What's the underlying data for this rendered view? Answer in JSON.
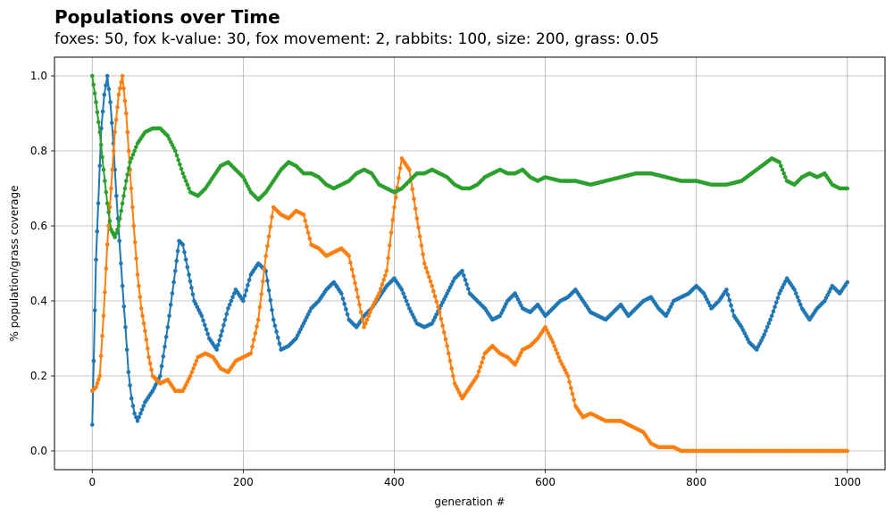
{
  "chart_data": {
    "type": "line",
    "title": "Populations over Time",
    "subtitle": "foxes: 50, fox k-value: 30, fox movement: 2, rabbits: 100, size: 200, grass: 0.05",
    "xlabel": "generation #",
    "ylabel": "% population/grass coverage",
    "xlim": [
      -50,
      1050
    ],
    "ylim": [
      -0.05,
      1.05
    ],
    "xticks": [
      0,
      200,
      400,
      600,
      800,
      1000
    ],
    "yticks": [
      0.0,
      0.2,
      0.4,
      0.6,
      0.8,
      1.0
    ],
    "xtick_labels": [
      "0",
      "200",
      "400",
      "600",
      "800",
      "1000"
    ],
    "ytick_labels": [
      "0.0",
      "0.2",
      "0.4",
      "0.6",
      "0.8",
      "1.0"
    ],
    "grid": true,
    "markers": true,
    "series": [
      {
        "color": "#1f77b4",
        "points": [
          [
            0,
            0.07
          ],
          [
            2,
            0.24
          ],
          [
            5,
            0.51
          ],
          [
            8,
            0.66
          ],
          [
            12,
            0.86
          ],
          [
            16,
            0.95
          ],
          [
            20,
            1.0
          ],
          [
            24,
            0.93
          ],
          [
            28,
            0.82
          ],
          [
            32,
            0.68
          ],
          [
            36,
            0.56
          ],
          [
            40,
            0.44
          ],
          [
            44,
            0.33
          ],
          [
            48,
            0.21
          ],
          [
            52,
            0.14
          ],
          [
            56,
            0.1
          ],
          [
            60,
            0.08
          ],
          [
            64,
            0.1
          ],
          [
            70,
            0.13
          ],
          [
            80,
            0.16
          ],
          [
            90,
            0.2
          ],
          [
            100,
            0.33
          ],
          [
            110,
            0.48
          ],
          [
            115,
            0.56
          ],
          [
            120,
            0.55
          ],
          [
            128,
            0.47
          ],
          [
            135,
            0.4
          ],
          [
            145,
            0.36
          ],
          [
            155,
            0.3
          ],
          [
            165,
            0.27
          ],
          [
            172,
            0.32
          ],
          [
            180,
            0.38
          ],
          [
            190,
            0.43
          ],
          [
            200,
            0.4
          ],
          [
            210,
            0.47
          ],
          [
            220,
            0.5
          ],
          [
            230,
            0.48
          ],
          [
            240,
            0.35
          ],
          [
            250,
            0.27
          ],
          [
            260,
            0.28
          ],
          [
            270,
            0.3
          ],
          [
            280,
            0.34
          ],
          [
            290,
            0.38
          ],
          [
            300,
            0.4
          ],
          [
            310,
            0.43
          ],
          [
            320,
            0.45
          ],
          [
            330,
            0.42
          ],
          [
            340,
            0.35
          ],
          [
            350,
            0.33
          ],
          [
            360,
            0.36
          ],
          [
            370,
            0.38
          ],
          [
            380,
            0.41
          ],
          [
            390,
            0.44
          ],
          [
            400,
            0.46
          ],
          [
            410,
            0.43
          ],
          [
            420,
            0.38
          ],
          [
            430,
            0.34
          ],
          [
            440,
            0.33
          ],
          [
            450,
            0.34
          ],
          [
            460,
            0.38
          ],
          [
            470,
            0.42
          ],
          [
            480,
            0.46
          ],
          [
            490,
            0.48
          ],
          [
            500,
            0.42
          ],
          [
            510,
            0.4
          ],
          [
            520,
            0.38
          ],
          [
            530,
            0.35
          ],
          [
            540,
            0.36
          ],
          [
            550,
            0.4
          ],
          [
            560,
            0.42
          ],
          [
            570,
            0.38
          ],
          [
            580,
            0.37
          ],
          [
            590,
            0.39
          ],
          [
            600,
            0.36
          ],
          [
            610,
            0.38
          ],
          [
            620,
            0.4
          ],
          [
            630,
            0.41
          ],
          [
            640,
            0.43
          ],
          [
            650,
            0.4
          ],
          [
            660,
            0.37
          ],
          [
            670,
            0.36
          ],
          [
            680,
            0.35
          ],
          [
            690,
            0.37
          ],
          [
            700,
            0.39
          ],
          [
            710,
            0.36
          ],
          [
            720,
            0.38
          ],
          [
            730,
            0.4
          ],
          [
            740,
            0.41
          ],
          [
            750,
            0.38
          ],
          [
            760,
            0.36
          ],
          [
            770,
            0.4
          ],
          [
            780,
            0.41
          ],
          [
            790,
            0.42
          ],
          [
            800,
            0.44
          ],
          [
            810,
            0.42
          ],
          [
            820,
            0.38
          ],
          [
            830,
            0.4
          ],
          [
            840,
            0.43
          ],
          [
            850,
            0.36
          ],
          [
            860,
            0.33
          ],
          [
            870,
            0.29
          ],
          [
            880,
            0.27
          ],
          [
            890,
            0.31
          ],
          [
            900,
            0.36
          ],
          [
            910,
            0.42
          ],
          [
            920,
            0.46
          ],
          [
            930,
            0.43
          ],
          [
            940,
            0.38
          ],
          [
            950,
            0.35
          ],
          [
            960,
            0.38
          ],
          [
            970,
            0.4
          ],
          [
            980,
            0.44
          ],
          [
            990,
            0.42
          ],
          [
            1000,
            0.45
          ]
        ]
      },
      {
        "color": "#ff7f0e",
        "points": [
          [
            0,
            0.16
          ],
          [
            5,
            0.17
          ],
          [
            10,
            0.2
          ],
          [
            15,
            0.36
          ],
          [
            20,
            0.55
          ],
          [
            25,
            0.7
          ],
          [
            30,
            0.85
          ],
          [
            35,
            0.95
          ],
          [
            40,
            1.0
          ],
          [
            45,
            0.9
          ],
          [
            50,
            0.75
          ],
          [
            55,
            0.6
          ],
          [
            60,
            0.47
          ],
          [
            65,
            0.38
          ],
          [
            70,
            0.32
          ],
          [
            75,
            0.25
          ],
          [
            80,
            0.2
          ],
          [
            85,
            0.19
          ],
          [
            90,
            0.18
          ],
          [
            100,
            0.19
          ],
          [
            110,
            0.16
          ],
          [
            120,
            0.16
          ],
          [
            130,
            0.2
          ],
          [
            140,
            0.25
          ],
          [
            150,
            0.26
          ],
          [
            160,
            0.25
          ],
          [
            170,
            0.22
          ],
          [
            180,
            0.21
          ],
          [
            190,
            0.24
          ],
          [
            200,
            0.25
          ],
          [
            210,
            0.26
          ],
          [
            220,
            0.35
          ],
          [
            230,
            0.52
          ],
          [
            240,
            0.65
          ],
          [
            250,
            0.63
          ],
          [
            260,
            0.62
          ],
          [
            270,
            0.64
          ],
          [
            280,
            0.63
          ],
          [
            290,
            0.55
          ],
          [
            300,
            0.54
          ],
          [
            310,
            0.52
          ],
          [
            320,
            0.53
          ],
          [
            330,
            0.54
          ],
          [
            340,
            0.52
          ],
          [
            350,
            0.43
          ],
          [
            360,
            0.33
          ],
          [
            370,
            0.38
          ],
          [
            380,
            0.42
          ],
          [
            390,
            0.48
          ],
          [
            400,
            0.65
          ],
          [
            410,
            0.78
          ],
          [
            420,
            0.75
          ],
          [
            430,
            0.62
          ],
          [
            440,
            0.5
          ],
          [
            450,
            0.44
          ],
          [
            460,
            0.37
          ],
          [
            470,
            0.28
          ],
          [
            480,
            0.18
          ],
          [
            490,
            0.14
          ],
          [
            500,
            0.17
          ],
          [
            510,
            0.2
          ],
          [
            520,
            0.26
          ],
          [
            530,
            0.28
          ],
          [
            540,
            0.26
          ],
          [
            550,
            0.25
          ],
          [
            560,
            0.23
          ],
          [
            570,
            0.27
          ],
          [
            580,
            0.28
          ],
          [
            590,
            0.3
          ],
          [
            600,
            0.33
          ],
          [
            610,
            0.29
          ],
          [
            620,
            0.24
          ],
          [
            630,
            0.2
          ],
          [
            640,
            0.12
          ],
          [
            650,
            0.09
          ],
          [
            660,
            0.1
          ],
          [
            670,
            0.09
          ],
          [
            680,
            0.08
          ],
          [
            690,
            0.08
          ],
          [
            700,
            0.08
          ],
          [
            710,
            0.07
          ],
          [
            720,
            0.06
          ],
          [
            730,
            0.05
          ],
          [
            740,
            0.02
          ],
          [
            750,
            0.01
          ],
          [
            760,
            0.01
          ],
          [
            770,
            0.01
          ],
          [
            780,
            0.0
          ],
          [
            800,
            0.0
          ],
          [
            850,
            0.0
          ],
          [
            900,
            0.0
          ],
          [
            950,
            0.0
          ],
          [
            1000,
            0.0
          ]
        ]
      },
      {
        "color": "#2ca02c",
        "points": [
          [
            0,
            1.0
          ],
          [
            5,
            0.93
          ],
          [
            10,
            0.85
          ],
          [
            15,
            0.75
          ],
          [
            20,
            0.66
          ],
          [
            25,
            0.59
          ],
          [
            30,
            0.57
          ],
          [
            35,
            0.6
          ],
          [
            40,
            0.66
          ],
          [
            45,
            0.72
          ],
          [
            50,
            0.77
          ],
          [
            60,
            0.82
          ],
          [
            70,
            0.85
          ],
          [
            80,
            0.86
          ],
          [
            90,
            0.86
          ],
          [
            100,
            0.84
          ],
          [
            110,
            0.8
          ],
          [
            120,
            0.74
          ],
          [
            130,
            0.69
          ],
          [
            140,
            0.68
          ],
          [
            150,
            0.7
          ],
          [
            160,
            0.73
          ],
          [
            170,
            0.76
          ],
          [
            180,
            0.77
          ],
          [
            190,
            0.75
          ],
          [
            200,
            0.73
          ],
          [
            210,
            0.69
          ],
          [
            220,
            0.67
          ],
          [
            230,
            0.69
          ],
          [
            240,
            0.72
          ],
          [
            250,
            0.75
          ],
          [
            260,
            0.77
          ],
          [
            270,
            0.76
          ],
          [
            280,
            0.74
          ],
          [
            290,
            0.74
          ],
          [
            300,
            0.73
          ],
          [
            310,
            0.71
          ],
          [
            320,
            0.7
          ],
          [
            330,
            0.71
          ],
          [
            340,
            0.72
          ],
          [
            350,
            0.74
          ],
          [
            360,
            0.75
          ],
          [
            370,
            0.74
          ],
          [
            380,
            0.71
          ],
          [
            390,
            0.7
          ],
          [
            400,
            0.69
          ],
          [
            410,
            0.7
          ],
          [
            420,
            0.72
          ],
          [
            430,
            0.74
          ],
          [
            440,
            0.74
          ],
          [
            450,
            0.75
          ],
          [
            460,
            0.74
          ],
          [
            470,
            0.73
          ],
          [
            480,
            0.71
          ],
          [
            490,
            0.7
          ],
          [
            500,
            0.7
          ],
          [
            510,
            0.71
          ],
          [
            520,
            0.73
          ],
          [
            530,
            0.74
          ],
          [
            540,
            0.75
          ],
          [
            550,
            0.74
          ],
          [
            560,
            0.74
          ],
          [
            570,
            0.75
          ],
          [
            580,
            0.73
          ],
          [
            590,
            0.72
          ],
          [
            600,
            0.73
          ],
          [
            620,
            0.72
          ],
          [
            640,
            0.72
          ],
          [
            660,
            0.71
          ],
          [
            680,
            0.72
          ],
          [
            700,
            0.73
          ],
          [
            720,
            0.74
          ],
          [
            740,
            0.74
          ],
          [
            760,
            0.73
          ],
          [
            780,
            0.72
          ],
          [
            800,
            0.72
          ],
          [
            820,
            0.71
          ],
          [
            840,
            0.71
          ],
          [
            860,
            0.72
          ],
          [
            880,
            0.75
          ],
          [
            900,
            0.78
          ],
          [
            910,
            0.77
          ],
          [
            920,
            0.72
          ],
          [
            930,
            0.71
          ],
          [
            940,
            0.73
          ],
          [
            950,
            0.74
          ],
          [
            960,
            0.73
          ],
          [
            970,
            0.74
          ],
          [
            980,
            0.71
          ],
          [
            990,
            0.7
          ],
          [
            1000,
            0.7
          ]
        ]
      }
    ]
  }
}
